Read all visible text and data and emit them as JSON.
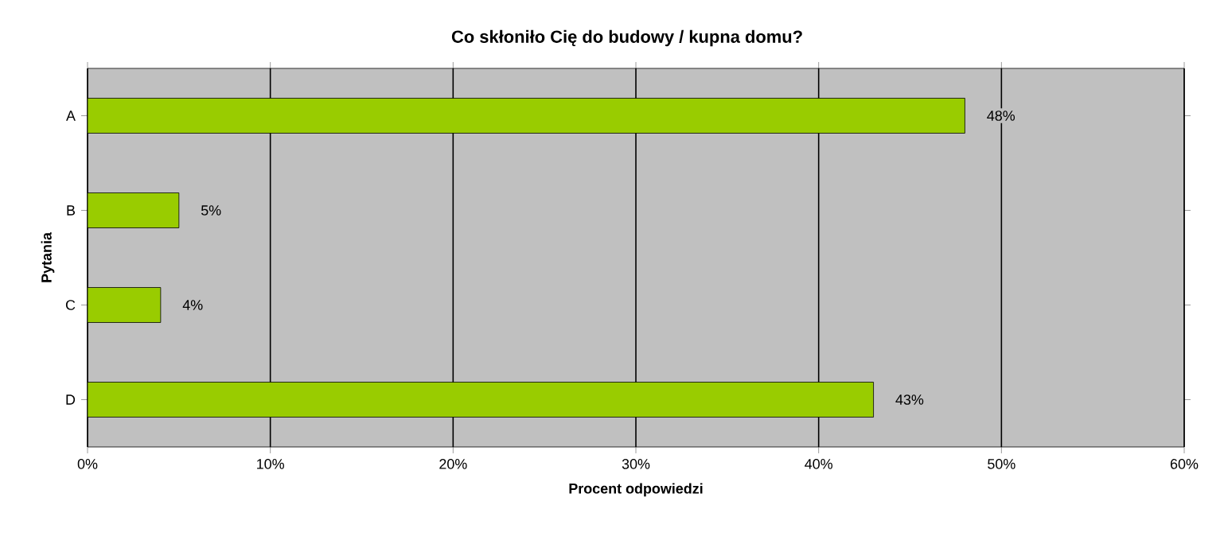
{
  "chart_data": {
    "type": "bar",
    "orientation": "horizontal",
    "title": "Co skłoniło Cię do budowy / kupna domu?",
    "xlabel": "Procent odpowiedzi",
    "ylabel": "Pytania",
    "categories": [
      "A",
      "B",
      "C",
      "D"
    ],
    "values": [
      48,
      5,
      4,
      43
    ],
    "value_labels": [
      "48%",
      "5%",
      "4%",
      "43%"
    ],
    "color": "#99cc00",
    "xlim": [
      0,
      60
    ],
    "xticks": [
      {
        "value": 0,
        "label": "0%"
      },
      {
        "value": 10,
        "label": "10%"
      },
      {
        "value": 20,
        "label": "20%"
      },
      {
        "value": 30,
        "label": "30%"
      },
      {
        "value": 40,
        "label": "40%"
      },
      {
        "value": 50,
        "label": "50%"
      },
      {
        "value": 60,
        "label": "60%"
      }
    ],
    "grid": "x"
  }
}
